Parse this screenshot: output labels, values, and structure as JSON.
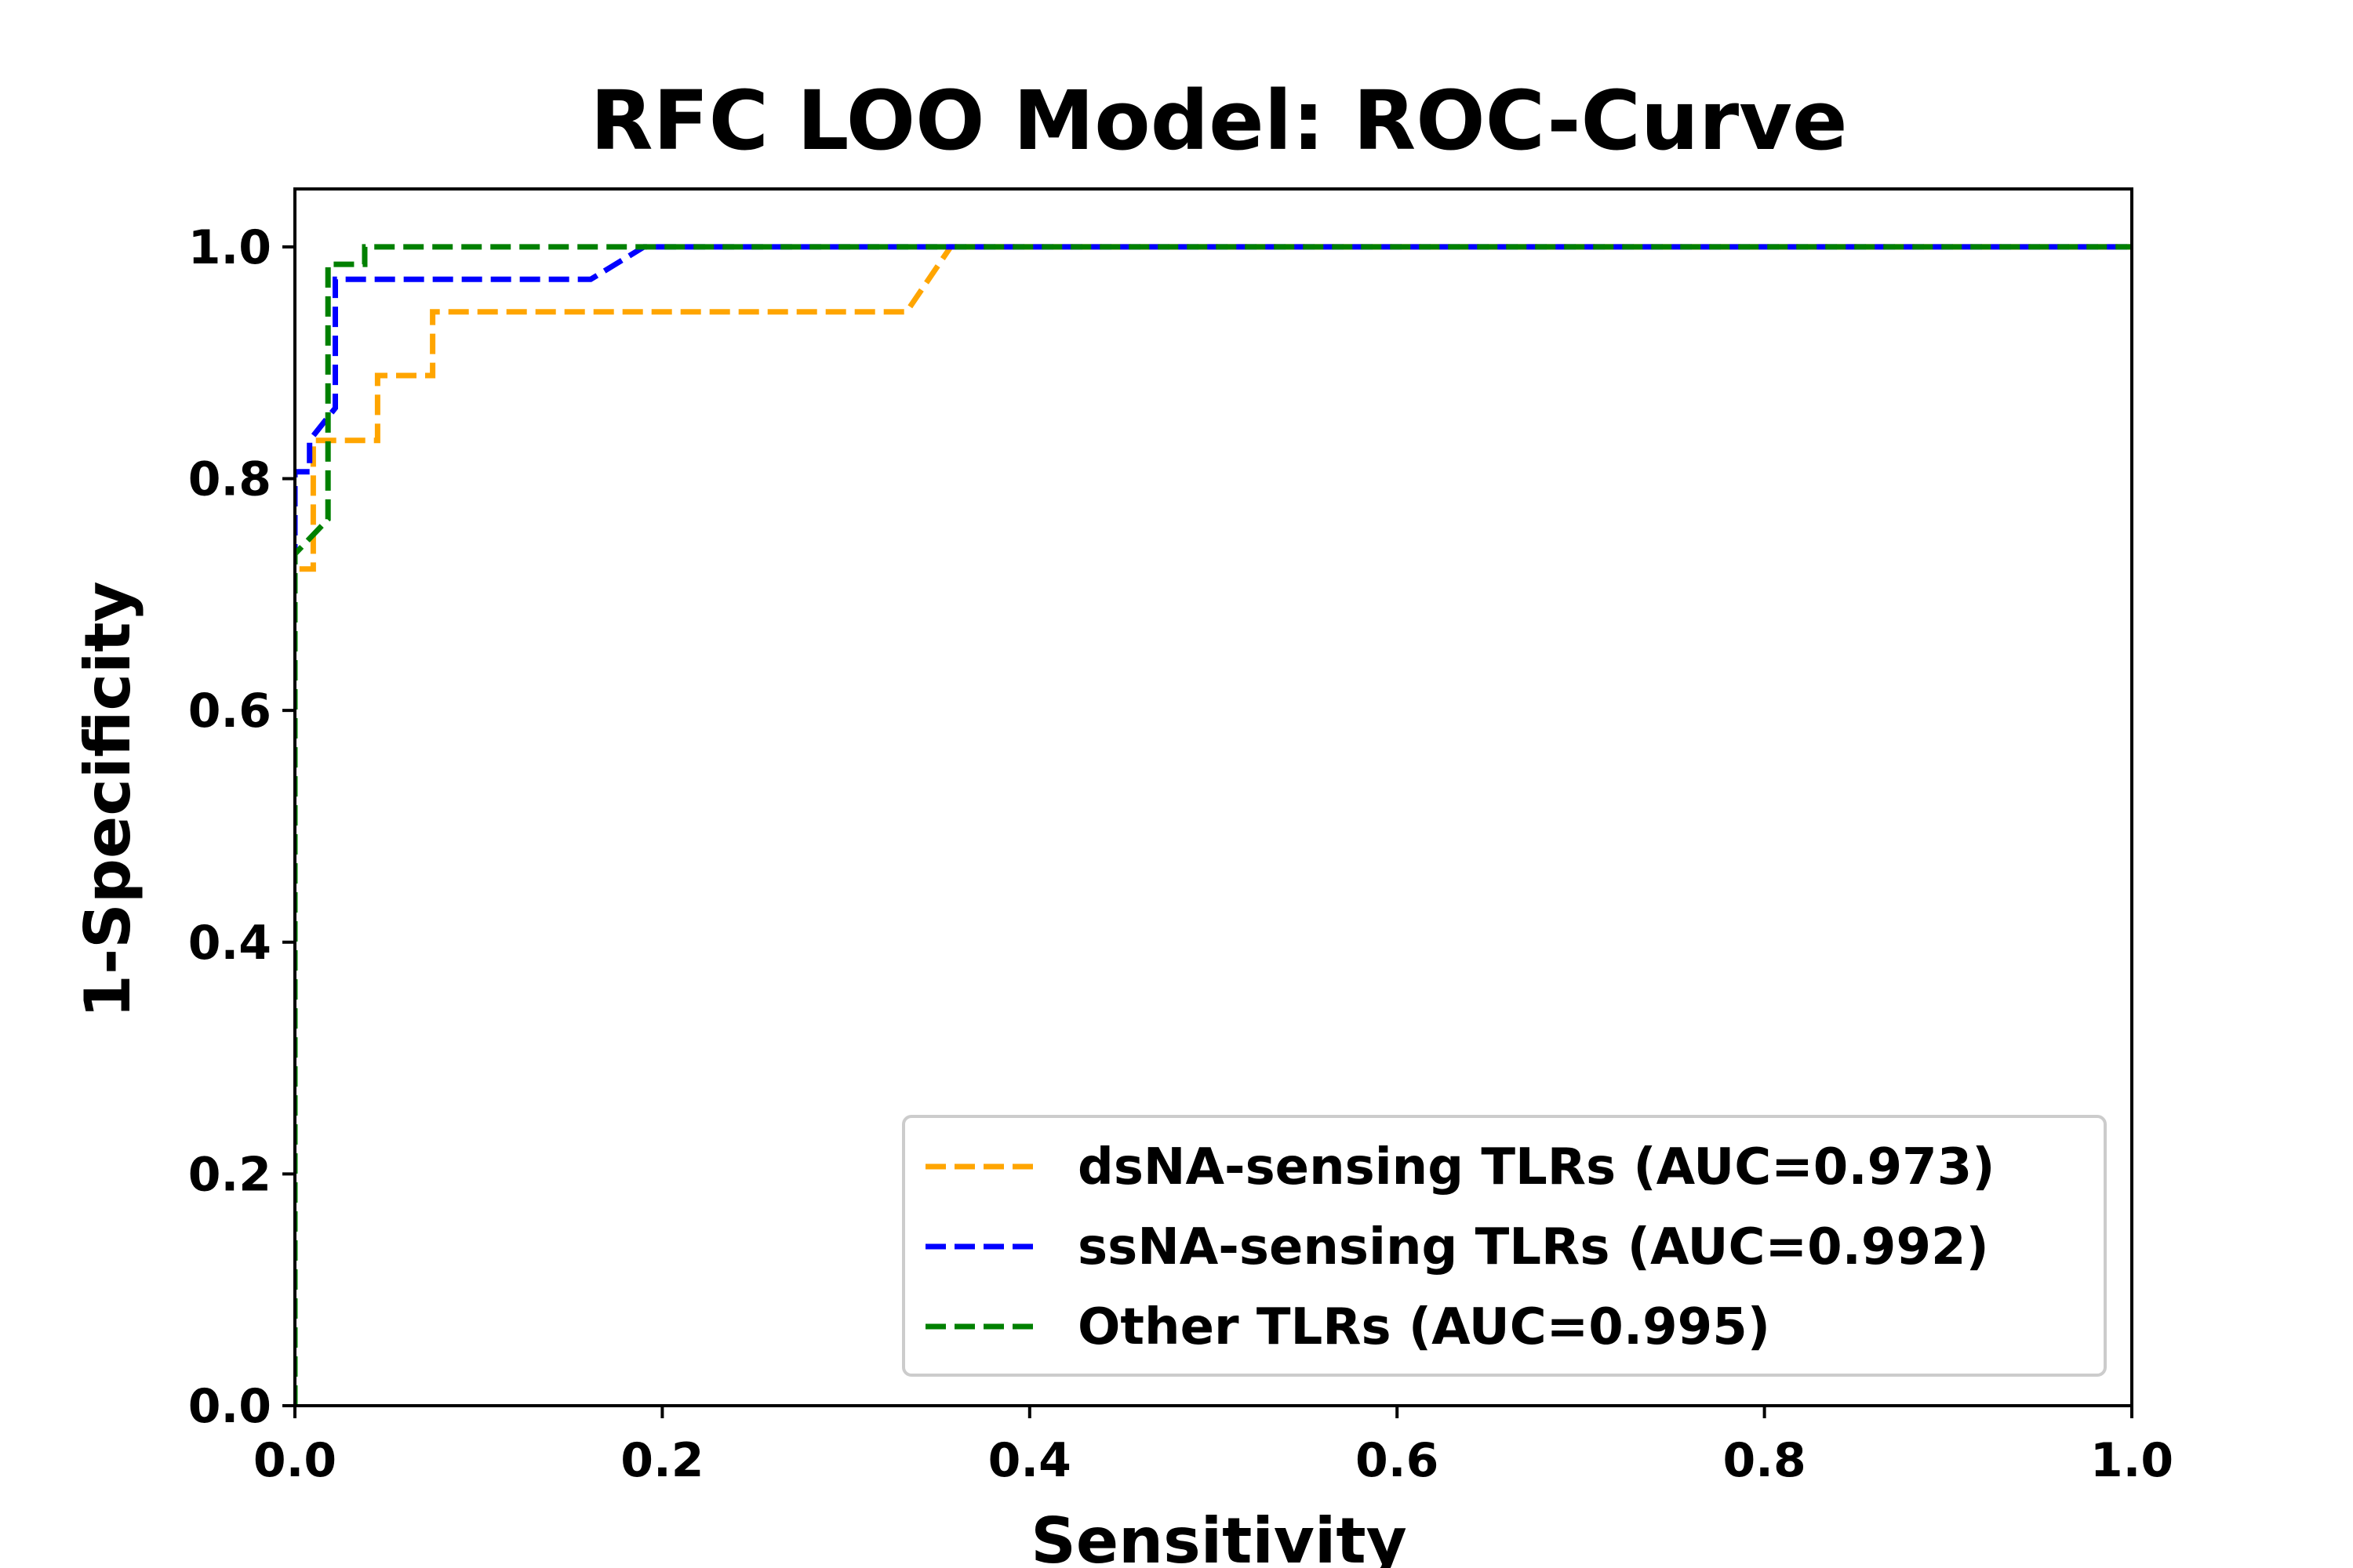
{
  "chart_data": {
    "type": "line",
    "title": "RFC LOO Model: ROC-Curve",
    "xlabel": "Sensitivity",
    "ylabel": "1-Specificity",
    "xlim": [
      0,
      1
    ],
    "ylim": [
      0,
      1.05
    ],
    "xticks": [
      0.0,
      0.2,
      0.4,
      0.6,
      0.8,
      1.0
    ],
    "yticks": [
      0.0,
      0.2,
      0.4,
      0.6,
      0.8,
      1.0
    ],
    "xtick_labels": [
      "0.0",
      "0.2",
      "0.4",
      "0.6",
      "0.8",
      "1.0"
    ],
    "ytick_labels": [
      "0.0",
      "0.2",
      "0.4",
      "0.6",
      "0.8",
      "1.0"
    ],
    "grid": false,
    "legend_position": "lower-right",
    "line_style": "dashed",
    "series": [
      {
        "name": "dsNA-sensing TLRs (AUC=0.973)",
        "color": "#FFA500",
        "x": [
          0,
          0,
          0.01,
          0.01,
          0.045,
          0.045,
          0.075,
          0.075,
          0.333,
          0.357,
          1.0
        ],
        "y": [
          0,
          0.722,
          0.722,
          0.833,
          0.833,
          0.889,
          0.889,
          0.944,
          0.944,
          1.0,
          1.0
        ]
      },
      {
        "name": "ssNA-sensing TLRs (AUC=0.992)",
        "color": "#0000FF",
        "x": [
          0,
          0,
          0.008,
          0.008,
          0.022,
          0.022,
          0.161,
          0.19,
          1.0
        ],
        "y": [
          0,
          0.806,
          0.806,
          0.833,
          0.861,
          0.972,
          0.972,
          1.0,
          1.0
        ]
      },
      {
        "name": "Other TLRs (AUC=0.995)",
        "color": "#008000",
        "x": [
          0,
          0,
          0.018,
          0.018,
          0.038,
          0.038,
          1.0
        ],
        "y": [
          0,
          0.735,
          0.765,
          0.985,
          0.985,
          1.0,
          1.0
        ]
      }
    ]
  }
}
